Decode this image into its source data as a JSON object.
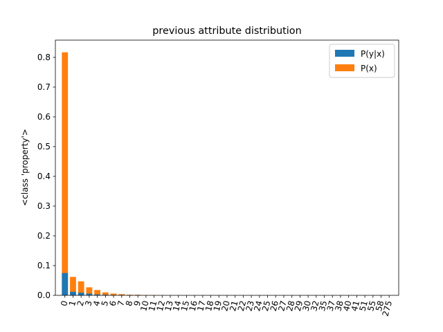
{
  "chart_data": {
    "type": "bar",
    "stacked": true,
    "title": "previous attribute distribution",
    "xlabel": "",
    "ylabel": "<class 'property'>",
    "categories": [
      "0",
      "1",
      "2",
      "3",
      "4",
      "5",
      "6",
      "7",
      "8",
      "9",
      "10",
      "11",
      "12",
      "13",
      "14",
      "15",
      "16",
      "17",
      "18",
      "19",
      "20",
      "21",
      "22",
      "23",
      "24",
      "25",
      "26",
      "27",
      "28",
      "29",
      "30",
      "32",
      "35",
      "37",
      "38",
      "40",
      "41",
      "51",
      "55",
      "58",
      "275"
    ],
    "series": [
      {
        "name": "P(y|x)",
        "color": "#1f77b4",
        "values": [
          0.075,
          0.012,
          0.009,
          0.006,
          0.003,
          0.002,
          0.001,
          0.001,
          0.001,
          0.001,
          0,
          0,
          0,
          0,
          0,
          0,
          0,
          0,
          0,
          0,
          0,
          0,
          0,
          0,
          0,
          0,
          0,
          0,
          0,
          0,
          0,
          0,
          0,
          0,
          0,
          0,
          0,
          0,
          0,
          0,
          0
        ]
      },
      {
        "name": "P(x)",
        "color": "#ff7f0e",
        "values": [
          0.817,
          0.062,
          0.047,
          0.027,
          0.018,
          0.01,
          0.006,
          0.004,
          0.002,
          0.002,
          0.001,
          0.001,
          0,
          0,
          0,
          0,
          0,
          0,
          0,
          0,
          0,
          0,
          0,
          0,
          0,
          0,
          0,
          0,
          0,
          0,
          0,
          0,
          0,
          0,
          0,
          0,
          0,
          0,
          0,
          0,
          0
        ]
      }
    ],
    "ylim": [
      0,
      0.858
    ],
    "yticks": [
      "0.0",
      "0.1",
      "0.2",
      "0.3",
      "0.4",
      "0.5",
      "0.6",
      "0.7",
      "0.8"
    ],
    "legend": "top-right",
    "grid": false
  }
}
